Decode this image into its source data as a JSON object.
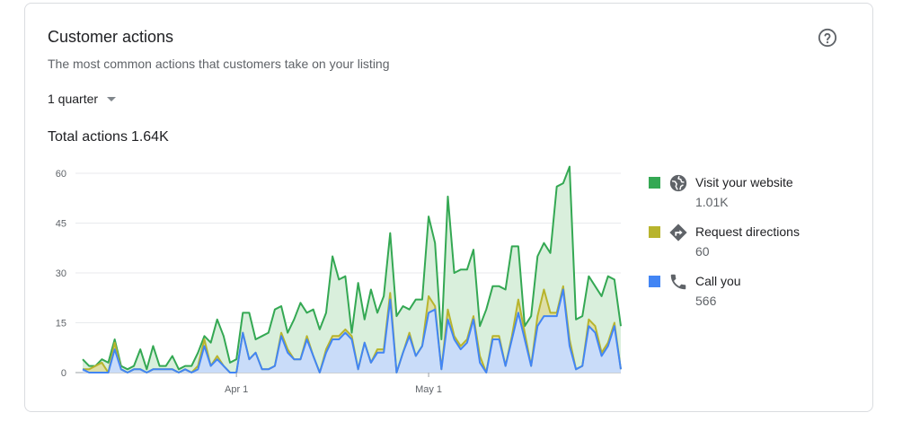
{
  "card": {
    "title": "Customer actions",
    "subtitle": "The most common actions that customers take on your listing",
    "period": "1 quarter",
    "total_label": "Total actions",
    "total_value": "1.64K",
    "help_icon": "help-circle-icon"
  },
  "legend": [
    {
      "label": "Visit your website",
      "value": "1.01K",
      "color": "#34a853",
      "icon": "globe-icon"
    },
    {
      "label": "Request directions",
      "value": "60",
      "color": "#b8b42d",
      "icon": "directions-icon"
    },
    {
      "label": "Call you",
      "value": "566",
      "color": "#4285f4",
      "icon": "phone-icon"
    }
  ],
  "chart_data": {
    "type": "area",
    "stacked": true,
    "ylim": [
      0,
      60
    ],
    "yticks": [
      0,
      15,
      30,
      45,
      60
    ],
    "grid": true,
    "legend_position": "right",
    "x_tick_labels": [
      {
        "label": "Apr 1",
        "index": 24
      },
      {
        "label": "May 1",
        "index": 54
      }
    ],
    "series": [
      {
        "name": "Call you",
        "color": "#4285f4",
        "fill": "#c9dcf9",
        "values": [
          1,
          0,
          0,
          0,
          0,
          7,
          1,
          0,
          1,
          1,
          0,
          1,
          1,
          1,
          1,
          0,
          1,
          0,
          1,
          8,
          2,
          4,
          2,
          0,
          0,
          12,
          4,
          6,
          1,
          1,
          2,
          11,
          6,
          4,
          4,
          10,
          5,
          0,
          6,
          10,
          10,
          12,
          10,
          1,
          9,
          3,
          6,
          6,
          22,
          0,
          6,
          11,
          5,
          8,
          18,
          19,
          1,
          16,
          10,
          7,
          9,
          16,
          3,
          0,
          10,
          10,
          2,
          10,
          18,
          10,
          2,
          14,
          17,
          17,
          17,
          25,
          8,
          1,
          2,
          14,
          12,
          5,
          8,
          14,
          1
        ]
      },
      {
        "name": "Request directions",
        "color": "#b8b42d",
        "fill": "#dedfa6",
        "values": [
          0,
          1,
          2,
          3,
          0,
          2,
          0,
          0,
          0,
          0,
          0,
          0,
          0,
          0,
          0,
          0,
          0,
          0,
          1,
          2,
          0,
          1,
          0,
          0,
          0,
          0,
          0,
          0,
          0,
          0,
          0,
          1,
          1,
          0,
          0,
          1,
          0,
          0,
          1,
          1,
          1,
          1,
          1,
          0,
          0,
          0,
          1,
          1,
          2,
          0,
          0,
          1,
          0,
          0,
          5,
          1,
          0,
          3,
          1,
          1,
          1,
          1,
          2,
          0,
          1,
          1,
          0,
          1,
          4,
          2,
          0,
          3,
          8,
          1,
          1,
          1,
          2,
          0,
          0,
          2,
          2,
          1,
          1,
          1,
          0
        ]
      },
      {
        "name": "Visit your website",
        "color": "#34a853",
        "fill": "#d9efdc",
        "values": [
          3,
          1,
          0,
          1,
          3,
          1,
          1,
          1,
          1,
          6,
          1,
          7,
          1,
          1,
          4,
          1,
          1,
          2,
          4,
          1,
          7,
          11,
          9,
          3,
          4,
          6,
          14,
          4,
          10,
          11,
          17,
          8,
          5,
          12,
          17,
          7,
          14,
          13,
          11,
          24,
          17,
          16,
          1,
          26,
          7,
          22,
          11,
          16,
          18,
          17,
          14,
          7,
          17,
          14,
          24,
          19,
          9,
          34,
          19,
          23,
          21,
          20,
          9,
          19,
          15,
          15,
          23,
          27,
          16,
          2,
          15,
          18,
          14,
          18,
          38,
          31,
          52,
          15,
          15,
          13,
          12,
          17,
          20,
          13,
          13
        ]
      }
    ]
  }
}
